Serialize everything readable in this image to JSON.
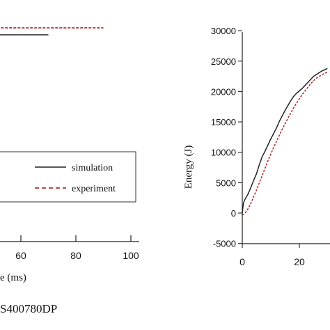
{
  "caption": "S400780DP",
  "chart_data": [
    {
      "type": "line",
      "title": "",
      "xlabel": "e (ms)",
      "ylabel": "",
      "xlim": [
        0,
        100
      ],
      "x_ticks": [
        "60",
        "80",
        "100"
      ],
      "grid": false,
      "legend": {
        "placement": "right",
        "entries": [
          {
            "label": "simulation",
            "style": "solid",
            "color": "#222222"
          },
          {
            "label": "experiment",
            "style": "dashed",
            "color": "#b03030"
          }
        ]
      },
      "series": [
        {
          "name": "experiment",
          "color": "#b03030",
          "style": "dashed",
          "x": [
            -5,
            90
          ],
          "y_level": 1.0
        },
        {
          "name": "simulation",
          "color": "#222222",
          "style": "solid",
          "x": [
            -5,
            70
          ],
          "y_level": 0.96
        }
      ]
    },
    {
      "type": "line",
      "title": "",
      "xlabel": "",
      "ylabel": "Energy (J)",
      "xlim": [
        0,
        30
      ],
      "ylim": [
        -5000,
        30000
      ],
      "y_ticks": [
        -5000,
        0,
        5000,
        10000,
        15000,
        20000,
        25000,
        30000
      ],
      "y_tick_labels": [
        "-5000",
        "0",
        "5000",
        "10000",
        "15000",
        "20000",
        "25000",
        "30000"
      ],
      "x_ticks": [
        0,
        20
      ],
      "x_tick_labels": [
        "0",
        "20"
      ],
      "grid": false,
      "series": [
        {
          "name": "simulation",
          "color": "#222222",
          "style": "solid",
          "x": [
            0,
            0.3,
            0.5,
            1,
            2,
            3,
            4,
            5,
            6,
            7,
            8,
            9,
            10,
            11,
            12,
            13,
            14,
            15,
            16,
            17,
            18,
            19,
            20,
            21,
            22,
            23,
            24,
            25,
            26,
            27,
            28,
            29,
            29.8
          ],
          "y": [
            0,
            1200,
            1800,
            2300,
            3100,
            4200,
            5400,
            6500,
            8000,
            9300,
            10200,
            11200,
            12200,
            13100,
            14000,
            15100,
            16000,
            16900,
            17700,
            18500,
            19200,
            19700,
            20100,
            20500,
            21000,
            21500,
            22000,
            22500,
            22800,
            23100,
            23400,
            23600,
            23800
          ]
        },
        {
          "name": "experiment",
          "color": "#b03030",
          "style": "dashed",
          "x": [
            0,
            0.5,
            1,
            2,
            3,
            4,
            5,
            6,
            7,
            8,
            9,
            10,
            11,
            12,
            13,
            14,
            15,
            16,
            17,
            18,
            19,
            20,
            21,
            22,
            23,
            24,
            25,
            26,
            27,
            28,
            29,
            29.8
          ],
          "y": [
            -300,
            -200,
            0,
            700,
            1600,
            2700,
            3800,
            5000,
            6200,
            7400,
            8600,
            9700,
            10800,
            11800,
            12800,
            13800,
            14700,
            15600,
            16500,
            17300,
            18100,
            18800,
            19500,
            20100,
            20700,
            21300,
            21800,
            22200,
            22500,
            22800,
            23000,
            23200
          ]
        }
      ]
    }
  ]
}
